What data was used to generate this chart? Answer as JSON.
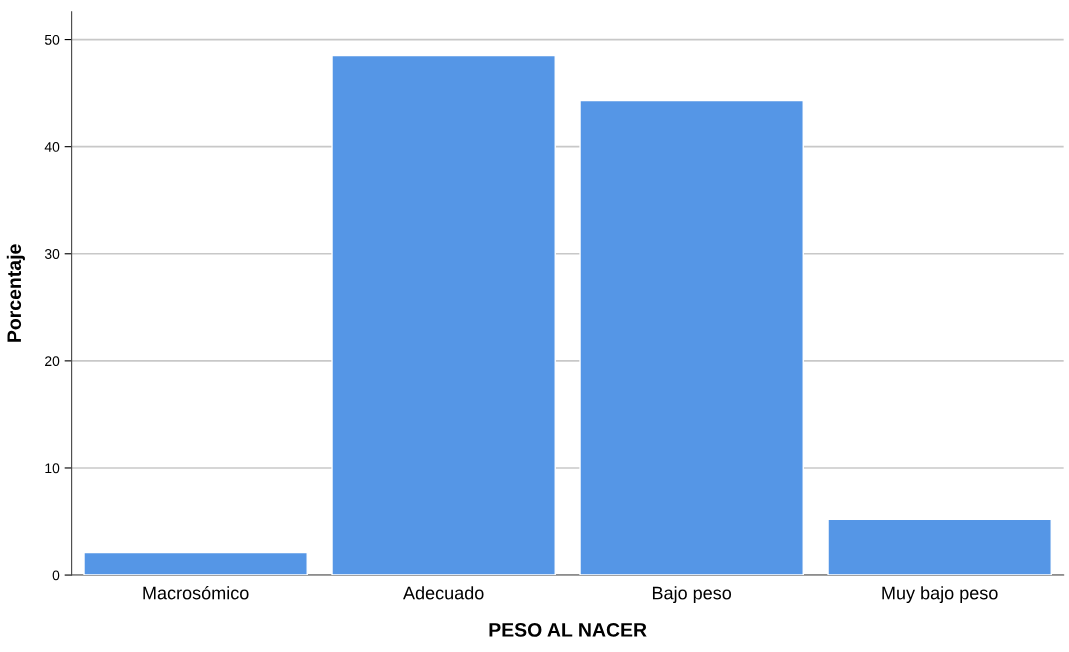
{
  "chart_data": {
    "type": "bar",
    "xlabel": "PESO AL NACER",
    "ylabel": "Porcentaje",
    "categories": [
      "Macrosómico",
      "Adecuado",
      "Bajo peso",
      "Muy bajo peso"
    ],
    "values": [
      2.1,
      48.5,
      44.3,
      5.2
    ],
    "color": "#5596e6",
    "ylim": [
      0,
      52.6
    ],
    "yticks": [
      0,
      10,
      20,
      30,
      40,
      50
    ],
    "grid": "y",
    "legend": false
  }
}
